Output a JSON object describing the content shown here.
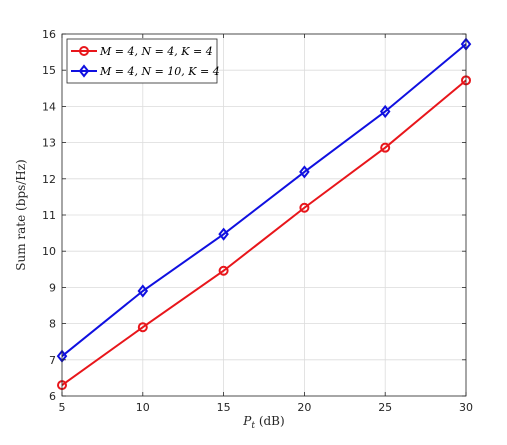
{
  "chart_data": {
    "type": "line",
    "title": "",
    "xlabel": "P_t (dB)",
    "xlabel_main": "P",
    "xlabel_sub": "t",
    "xlabel_unit": " (dB)",
    "ylabel": "Sum rate (bps/Hz)",
    "x": [
      5,
      10,
      15,
      20,
      25,
      30
    ],
    "xlim": [
      5,
      30
    ],
    "ylim": [
      6,
      16
    ],
    "xticks": [
      "5",
      "10",
      "15",
      "20",
      "25",
      "30"
    ],
    "yticks": [
      "6",
      "7",
      "8",
      "9",
      "10",
      "11",
      "12",
      "13",
      "14",
      "15",
      "16"
    ],
    "grid": true,
    "legend_position": "top-left",
    "series": [
      {
        "name": "M = 4, N = 4, K = 4",
        "color": "#e8161b",
        "marker": "circle",
        "values": [
          6.3,
          7.9,
          9.46,
          11.2,
          12.86,
          14.72
        ]
      },
      {
        "name": "M = 4, N = 10, K = 4",
        "color": "#1010e0",
        "marker": "diamond",
        "values": [
          7.1,
          8.9,
          10.47,
          12.19,
          13.86,
          15.72
        ]
      }
    ]
  }
}
